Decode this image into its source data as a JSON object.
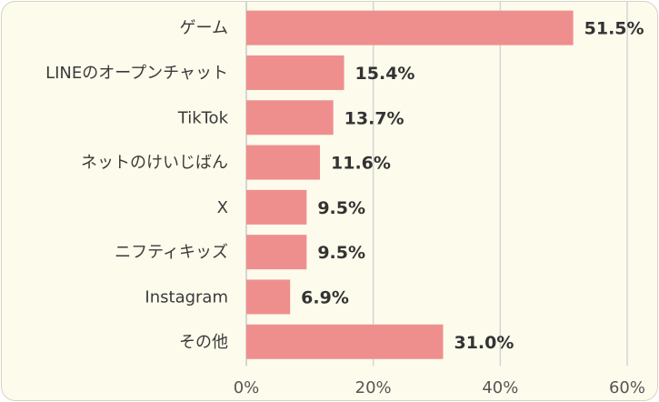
{
  "chart_data": {
    "type": "bar",
    "orientation": "horizontal",
    "categories": [
      "ゲーム",
      "LINEのオープンチャット",
      "TikTok",
      "ネットのけいじばん",
      "X",
      "ニフティキッズ",
      "Instagram",
      "その他"
    ],
    "values": [
      51.5,
      15.4,
      13.7,
      11.6,
      9.5,
      9.5,
      6.9,
      31.0
    ],
    "value_labels": [
      "51.5%",
      "15.4%",
      "13.7%",
      "11.6%",
      "9.5%",
      "9.5%",
      "6.9%",
      "31.0%"
    ],
    "xlim": [
      0,
      60
    ],
    "xticks": [
      0,
      20,
      40,
      60
    ],
    "xtick_labels": [
      "0%",
      "20%",
      "40%",
      "60%"
    ],
    "title": "",
    "xlabel": "",
    "ylabel": "",
    "grid": true,
    "legend": "none",
    "colors": {
      "bar": "#ef8f8d",
      "background": "#fdfbec",
      "grid": "#d4d4d4"
    }
  }
}
